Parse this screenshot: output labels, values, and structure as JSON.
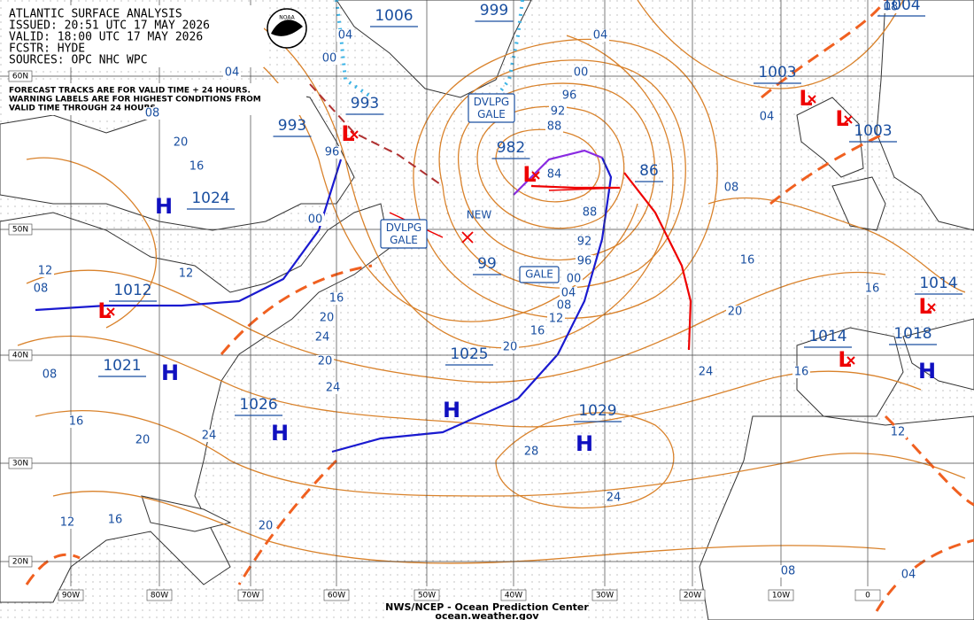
{
  "header": {
    "lines": [
      "ATLANTIC SURFACE ANALYSIS",
      "ISSUED: 20:51 UTC 17 MAY 2026",
      "VALID: 18:00 UTC 17 MAY 2026",
      "FCSTR: HYDE",
      "SOURCES: OPC NHC WPC"
    ]
  },
  "note": {
    "lines": [
      "FORECAST TRACKS ARE FOR VALID TIME + 24 HOURS.",
      "WARNING LABELS ARE FOR HIGHEST CONDITIONS FROM",
      "VALID TIME THROUGH 24 HOURS."
    ]
  },
  "logo": "NOAA",
  "pressure_boxes": [
    "1006",
    "999",
    "1004",
    "1003",
    "1003",
    "993",
    "993",
    "982",
    "86",
    "1024",
    "99",
    "1012",
    "1025",
    "1021",
    "1026",
    "1029",
    "1014",
    "1018",
    "1014"
  ],
  "high_symbols": [
    "H",
    "H",
    "H",
    "H",
    "H",
    "H"
  ],
  "low_symbols": [
    "L",
    "L",
    "L",
    "L",
    "L",
    "L",
    "L"
  ],
  "warnings": [
    "DVLPG GALE",
    "DVLPG GALE",
    "GALE"
  ],
  "new_label": "NEW",
  "isobar_labels": [
    "04",
    "00",
    "04",
    "08",
    "96",
    "00",
    "04",
    "96",
    "92",
    "88",
    "84",
    "88",
    "92",
    "96",
    "00",
    "04",
    "08",
    "12",
    "16",
    "20",
    "24",
    "28",
    "24",
    "20",
    "24",
    "20",
    "16",
    "12",
    "08",
    "20",
    "16",
    "12",
    "08",
    "16",
    "20",
    "24",
    "12",
    "16",
    "20",
    "12",
    "08",
    "04",
    "08",
    "16",
    "16",
    "16",
    "20",
    "08",
    "04",
    "24",
    "00"
  ],
  "latitude_labels": [
    "60N",
    "50N",
    "40N",
    "30N",
    "20N"
  ],
  "longitude_labels": [
    "90W",
    "80W",
    "70W",
    "60W",
    "50W",
    "40W",
    "30W",
    "20W",
    "10W",
    "0"
  ],
  "footer": {
    "lines": [
      "NWS/NCEP - Ocean Prediction Center",
      "ocean.weather.gov"
    ]
  }
}
